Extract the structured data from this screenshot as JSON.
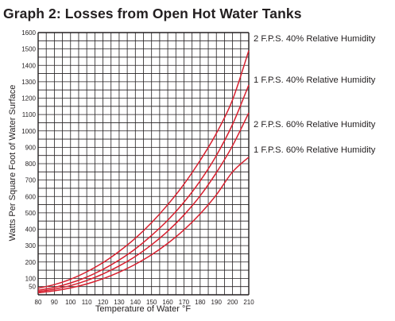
{
  "chart_data": {
    "type": "line",
    "title": "Graph 2: Losses from Open Hot Water Tanks",
    "xlabel": "Temperature of Water °F",
    "ylabel": "Watts Per Square Foot of Water Surface",
    "xlim": [
      80,
      210
    ],
    "ylim": [
      0,
      1600
    ],
    "x_ticks": [
      80,
      90,
      100,
      110,
      120,
      130,
      140,
      150,
      160,
      170,
      180,
      190,
      200,
      210
    ],
    "y_ticks": [
      50,
      100,
      200,
      300,
      400,
      500,
      600,
      700,
      800,
      900,
      1000,
      1100,
      1200,
      1300,
      1400,
      1500,
      1600
    ],
    "grid": true,
    "legend": "right",
    "line_color": "#d71f2e",
    "x": [
      80,
      90,
      100,
      110,
      120,
      130,
      140,
      150,
      160,
      170,
      180,
      190,
      200,
      210
    ],
    "series": [
      {
        "name": "2 F.P.S. 40% Relative Humidity",
        "values": [
          40,
          62,
          95,
          140,
          196,
          265,
          345,
          440,
          550,
          675,
          820,
          985,
          1190,
          1490
        ]
      },
      {
        "name": "1 F.P.S. 40% Relative Humidity",
        "values": [
          28,
          45,
          72,
          108,
          155,
          212,
          280,
          362,
          455,
          565,
          695,
          850,
          1040,
          1280
        ]
      },
      {
        "name": "2 F.P.S. 60% Relative Humidity",
        "values": [
          20,
          34,
          56,
          87,
          127,
          176,
          234,
          305,
          388,
          487,
          604,
          745,
          910,
          1110
        ]
      },
      {
        "name": "1 F.P.S. 60% Relative Humidity",
        "values": [
          12,
          24,
          42,
          66,
          98,
          138,
          186,
          244,
          314,
          396,
          494,
          610,
          750,
          840
        ]
      }
    ]
  }
}
